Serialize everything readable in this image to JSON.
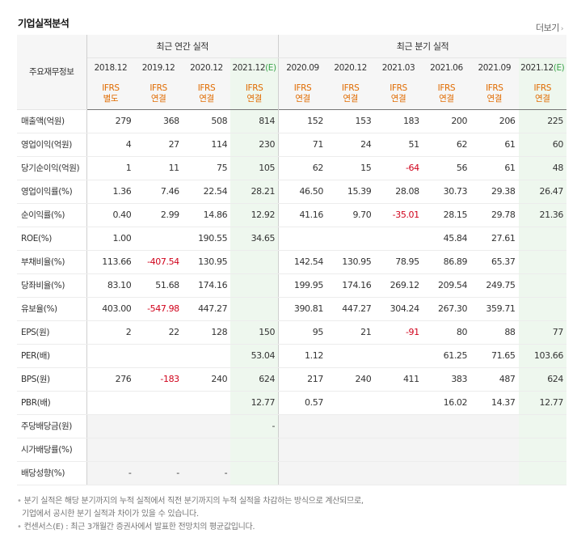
{
  "title": "기업실적분석",
  "more": {
    "label": "더보기",
    "chevron_icon": "chevron-right-icon"
  },
  "header": {
    "label": "주요재무정보",
    "annual_group": "최근 연간 실적",
    "quarter_group": "최근 분기 실적",
    "annual_periods": [
      "2018.12",
      "2019.12",
      "2020.12",
      "2021.12"
    ],
    "quarter_periods": [
      "2020.09",
      "2020.12",
      "2021.03",
      "2021.06",
      "2021.09",
      "2021.12"
    ],
    "estimate_mark": "(E)",
    "standards_top": [
      "IFRS",
      "IFRS",
      "IFRS",
      "IFRS",
      "IFRS",
      "IFRS",
      "IFRS",
      "IFRS",
      "IFRS",
      "IFRS"
    ],
    "standards_bottom": [
      "별도",
      "연결",
      "연결",
      "연결",
      "연결",
      "연결",
      "연결",
      "연결",
      "연결",
      "연결"
    ]
  },
  "rows": [
    {
      "label": "매출액(억원)",
      "values": [
        "279",
        "368",
        "508",
        "814",
        "152",
        "153",
        "183",
        "200",
        "206",
        "225"
      ]
    },
    {
      "label": "영업이익(억원)",
      "values": [
        "4",
        "27",
        "114",
        "230",
        "71",
        "24",
        "51",
        "62",
        "61",
        "60"
      ]
    },
    {
      "label": "당기순이익(억원)",
      "values": [
        "1",
        "11",
        "75",
        "105",
        "62",
        "15",
        "-64",
        "56",
        "61",
        "48"
      ]
    },
    {
      "label": "영업이익률(%)",
      "values": [
        "1.36",
        "7.46",
        "22.54",
        "28.21",
        "46.50",
        "15.39",
        "28.08",
        "30.73",
        "29.38",
        "26.47"
      ]
    },
    {
      "label": "순이익률(%)",
      "values": [
        "0.40",
        "2.99",
        "14.86",
        "12.92",
        "41.16",
        "9.70",
        "-35.01",
        "28.15",
        "29.78",
        "21.36"
      ]
    },
    {
      "label": "ROE(%)",
      "values": [
        "1.00",
        "",
        "190.55",
        "34.65",
        "",
        "",
        "",
        "45.84",
        "27.61",
        ""
      ]
    },
    {
      "label": "부채비율(%)",
      "values": [
        "113.66",
        "-407.54",
        "130.95",
        "",
        "142.54",
        "130.95",
        "78.95",
        "86.89",
        "65.37",
        ""
      ]
    },
    {
      "label": "당좌비율(%)",
      "values": [
        "83.10",
        "51.68",
        "174.16",
        "",
        "199.95",
        "174.16",
        "269.12",
        "209.54",
        "249.75",
        ""
      ]
    },
    {
      "label": "유보율(%)",
      "values": [
        "403.00",
        "-547.98",
        "447.27",
        "",
        "390.81",
        "447.27",
        "304.24",
        "267.30",
        "359.71",
        ""
      ]
    },
    {
      "label": "EPS(원)",
      "values": [
        "2",
        "22",
        "128",
        "150",
        "95",
        "21",
        "-91",
        "80",
        "88",
        "77"
      ]
    },
    {
      "label": "PER(배)",
      "values": [
        "",
        "",
        "",
        "53.04",
        "1.12",
        "",
        "",
        "61.25",
        "71.65",
        "103.66"
      ]
    },
    {
      "label": "BPS(원)",
      "values": [
        "276",
        "-183",
        "240",
        "624",
        "217",
        "240",
        "411",
        "383",
        "487",
        "624"
      ]
    },
    {
      "label": "PBR(배)",
      "values": [
        "",
        "",
        "",
        "12.77",
        "0.57",
        "",
        "",
        "16.02",
        "14.37",
        "12.77"
      ]
    },
    {
      "label": "주당배당금(원)",
      "values": [
        "",
        "",
        "",
        "-",
        "",
        "",
        "",
        "",
        "",
        ""
      ]
    },
    {
      "label": "시가배당률(%)",
      "values": [
        "",
        "",
        "",
        "",
        "",
        "",
        "",
        "",
        "",
        ""
      ]
    },
    {
      "label": "배당성향(%)",
      "values": [
        "-",
        "-",
        "-",
        "",
        "",
        "",
        "",
        "",
        "",
        ""
      ]
    }
  ],
  "notes": [
    "분기 실적은 해당 분기까지의 누적 실적에서 직전 분기까지의 누적 실적을 차감하는 방식으로 계산되므로,",
    "기업에서 공시한 분기 실적과 차이가 있을 수 있습니다.",
    "컨센서스(E) : 최근 3개월간 증권사에서 발표한 전망치의 평균값입니다."
  ],
  "colors": {
    "negative": "#d0021b",
    "estimate_bg": "#eef7ee",
    "standard_text": "#e06b00",
    "estimate_mark": "#3aa34a"
  }
}
